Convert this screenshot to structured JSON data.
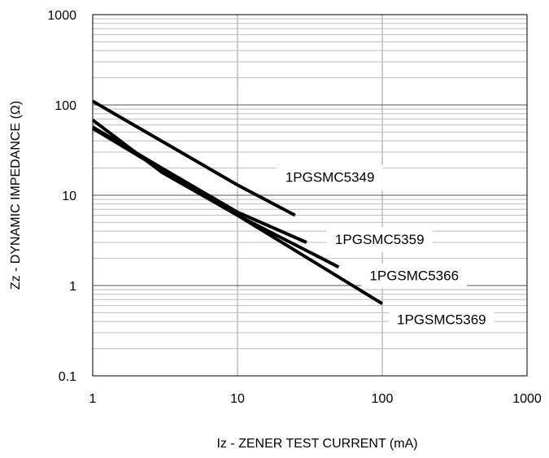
{
  "chart_data": {
    "type": "line",
    "title": "",
    "xlabel": "Iz - ZENER TEST CURRENT (mA)",
    "ylabel": "Zz - DYNAMIC IMPEDANCE (Ω)",
    "x_scale": "log",
    "y_scale": "log",
    "xlim": [
      1,
      1000
    ],
    "ylim": [
      0.1,
      1000
    ],
    "x_ticks": [
      "1",
      "10",
      "100",
      "1000"
    ],
    "y_ticks": [
      "0.1",
      "1",
      "10",
      "100",
      "1000"
    ],
    "grid": true,
    "line_color": "#000000",
    "series": [
      {
        "name": "1PGSMC5349",
        "points": [
          [
            1,
            110
          ],
          [
            10,
            13
          ],
          [
            25,
            6
          ]
        ]
      },
      {
        "name": "1PGSMC5359",
        "points": [
          [
            1,
            57
          ],
          [
            3,
            20
          ],
          [
            10,
            6.5
          ],
          [
            30,
            3
          ]
        ]
      },
      {
        "name": "1PGSMC5366",
        "points": [
          [
            1,
            68
          ],
          [
            3,
            18
          ],
          [
            10,
            6
          ],
          [
            50,
            1.6
          ]
        ]
      },
      {
        "name": "1PGSMC5369",
        "points": [
          [
            1,
            55
          ],
          [
            10,
            6
          ],
          [
            100,
            0.63
          ]
        ]
      }
    ]
  }
}
